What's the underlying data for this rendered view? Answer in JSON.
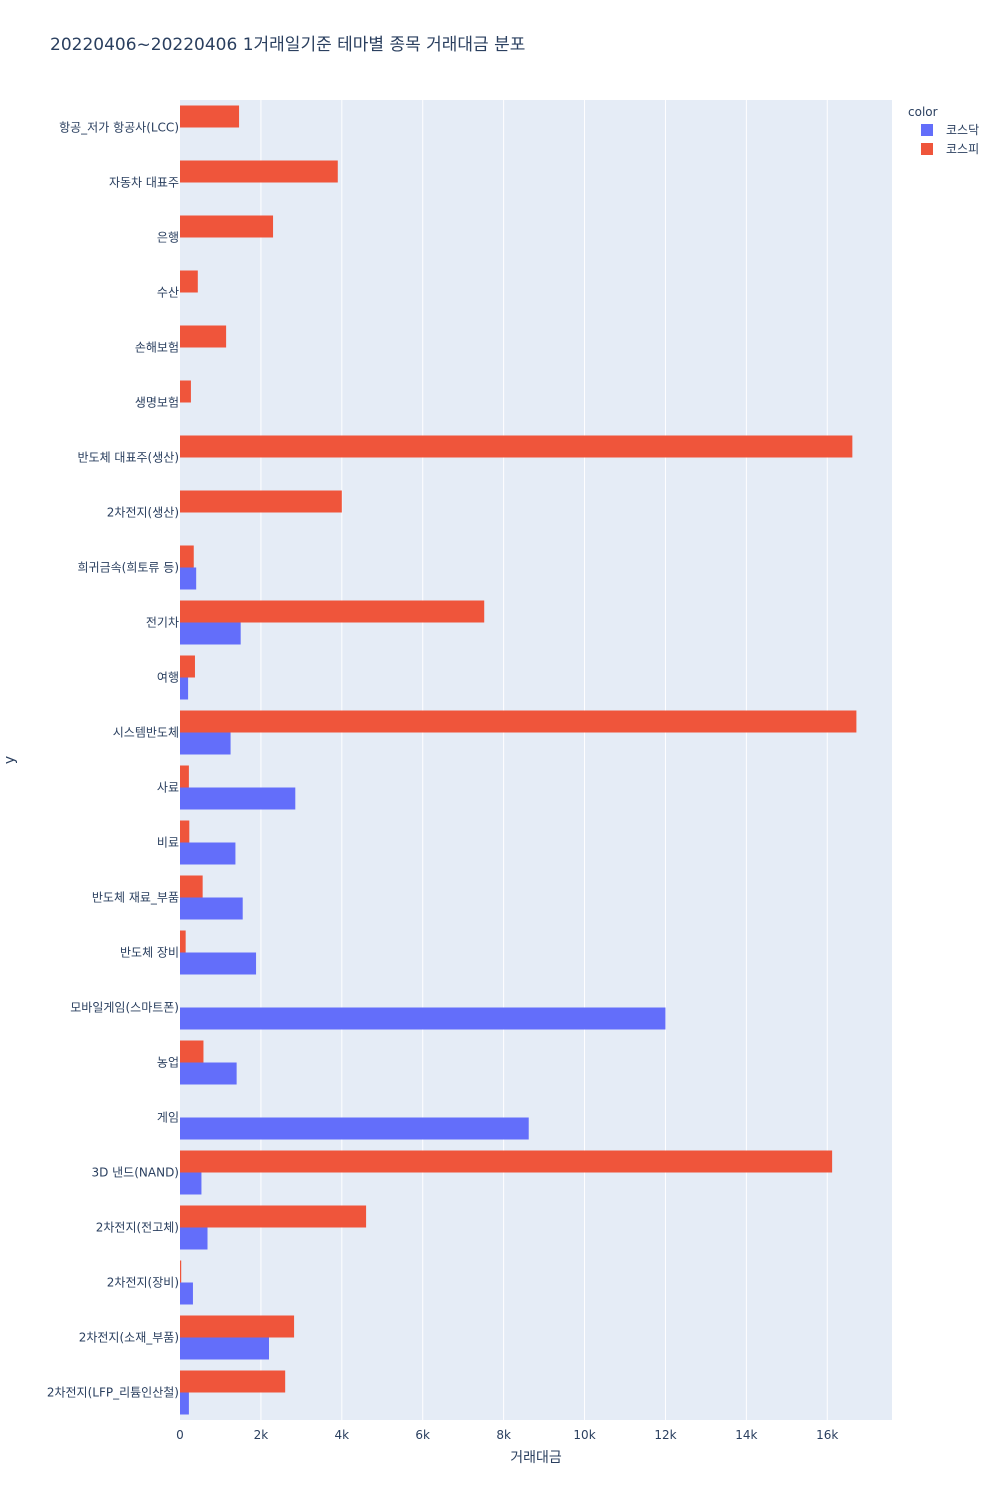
{
  "chart_data": {
    "type": "bar",
    "orientation": "horizontal",
    "barmode": "group",
    "title": "20220406~20220406 1거래일기준 테마별 종목 거래대금 분포",
    "xlabel": "거래대금",
    "ylabel": "y",
    "xlim": [
      0,
      17600
    ],
    "x_ticks": [
      0,
      2000,
      4000,
      6000,
      8000,
      10000,
      12000,
      14000,
      16000
    ],
    "x_tick_labels": [
      "0",
      "2k",
      "4k",
      "6k",
      "8k",
      "10k",
      "12k",
      "14k",
      "16k"
    ],
    "grid": true,
    "legend_title": "color",
    "legend_position": "top-right",
    "categories": [
      "항공_저가 항공사(LCC)",
      "자동차 대표주",
      "은행",
      "수산",
      "손해보험",
      "생명보험",
      "반도체 대표주(생산)",
      "2차전지(생산)",
      "희귀금속(희토류 등)",
      "전기차",
      "여행",
      "시스템반도체",
      "사료",
      "비료",
      "반도체 재료_부품",
      "반도체 장비",
      "모바일게임(스마트폰)",
      "농업",
      "게임",
      "3D 낸드(NAND)",
      "2차전지(전고체)",
      "2차전지(장비)",
      "2차전지(소재_부품)",
      "2차전지(LFP_리튬인산철)"
    ],
    "series": [
      {
        "name": "코스닥",
        "color": "#636efa",
        "values": [
          0,
          0,
          0,
          0,
          0,
          0,
          0,
          0,
          400,
          1500,
          200,
          1250,
          2850,
          1370,
          1550,
          1880,
          12000,
          1400,
          8620,
          530,
          680,
          320,
          2200,
          220
        ]
      },
      {
        "name": "코스피",
        "color": "#ef553b",
        "values": [
          1460,
          3900,
          2300,
          440,
          1140,
          270,
          16620,
          4000,
          340,
          7520,
          370,
          16720,
          220,
          230,
          560,
          140,
          0,
          580,
          0,
          16120,
          4600,
          30,
          2820,
          2600
        ]
      }
    ]
  }
}
